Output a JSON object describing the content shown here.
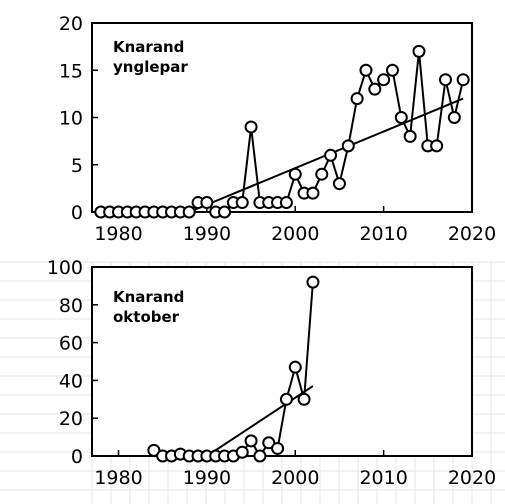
{
  "colors": {
    "line": "#000000",
    "marker_fill": "#ffffff",
    "background": "#ffffff",
    "grid": "#e6e6e6"
  },
  "chart_data": [
    {
      "type": "line",
      "title": "Knarand ynglepar",
      "title_lines": [
        "Knarand",
        "ynglepar"
      ],
      "xlabel": "",
      "ylabel": "",
      "xlim": [
        1977,
        2020
      ],
      "ylim": [
        0,
        20
      ],
      "x_ticks": [
        1980,
        1990,
        2000,
        2010,
        2020
      ],
      "y_ticks": [
        0,
        5,
        10,
        15,
        20
      ],
      "grid": false,
      "series": [
        {
          "x": [
            1978,
            1979,
            1980,
            1981,
            1982,
            1983,
            1984,
            1985,
            1986,
            1987,
            1988,
            1989,
            1990,
            1991,
            1992,
            1993,
            1994,
            1995,
            1996,
            1997,
            1998,
            1999,
            2000,
            2001,
            2002,
            2003,
            2004,
            2005,
            2006,
            2007,
            2008,
            2009,
            2010,
            2011,
            2012,
            2013,
            2014,
            2015,
            2016,
            2017,
            2018,
            2019
          ],
          "y": [
            0,
            0,
            0,
            0,
            0,
            0,
            0,
            0,
            0,
            0,
            0,
            1,
            1,
            0,
            0,
            1,
            1,
            9,
            1,
            1,
            1,
            1,
            4,
            2,
            2,
            4,
            6,
            3,
            7,
            12,
            15,
            13,
            14,
            15,
            10,
            8,
            17,
            7,
            7,
            14,
            10,
            14
          ]
        }
      ],
      "trend": {
        "x": [
          1988,
          2019
        ],
        "y": [
          0,
          12
        ]
      }
    },
    {
      "type": "line",
      "title": "Knarand oktober",
      "title_lines": [
        "Knarand",
        "oktober"
      ],
      "xlabel": "",
      "ylabel": "",
      "xlim": [
        1977,
        2020
      ],
      "ylim": [
        0,
        100
      ],
      "x_ticks": [
        1980,
        1990,
        2000,
        2010,
        2020
      ],
      "y_ticks": [
        0,
        20,
        40,
        60,
        80,
        100
      ],
      "grid": true,
      "series": [
        {
          "x": [
            1984,
            1985,
            1986,
            1987,
            1988,
            1989,
            1990,
            1991,
            1992,
            1993,
            1994,
            1995,
            1996,
            1997,
            1998,
            1999,
            2000,
            2001,
            2002
          ],
          "y": [
            3,
            0,
            0,
            1,
            0,
            0,
            0,
            0,
            0,
            0,
            2,
            8,
            0,
            7,
            4,
            30,
            47,
            30,
            92
          ]
        }
      ],
      "trend": {
        "x": [
          1990,
          2002
        ],
        "y": [
          0,
          37
        ]
      }
    }
  ]
}
